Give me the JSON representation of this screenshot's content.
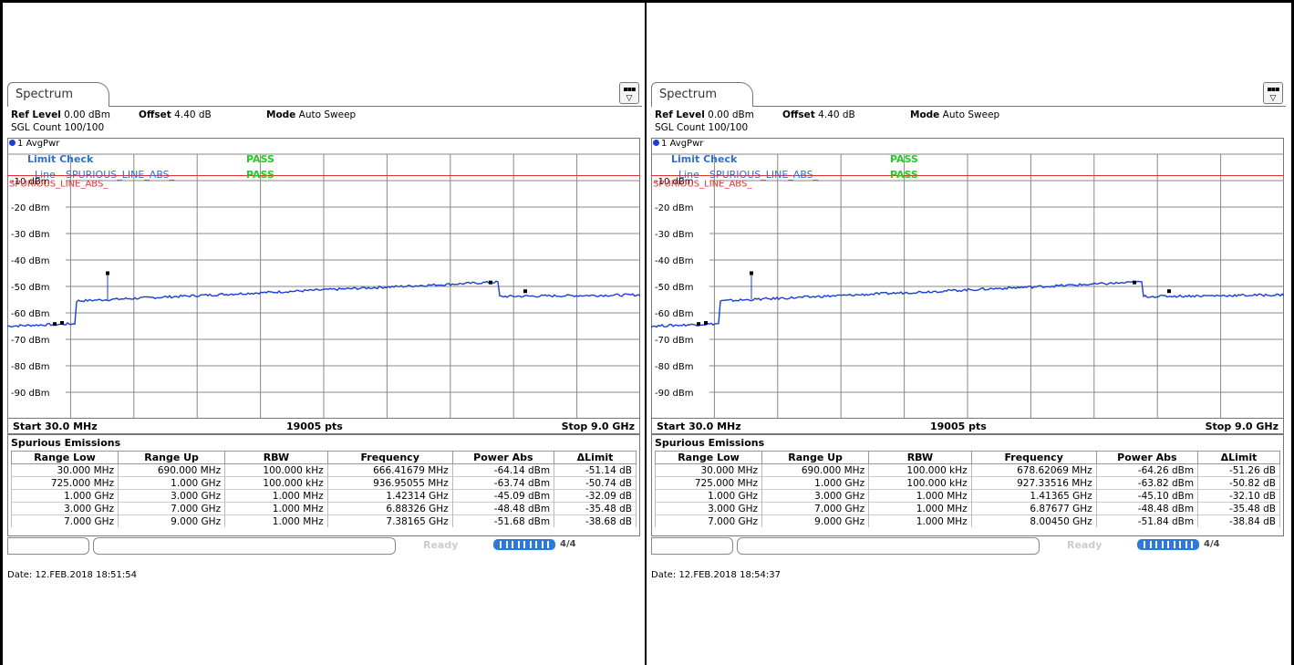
{
  "screens": [
    {
      "tab_label": "Spectrum",
      "ref_level_label": "Ref Level",
      "ref_level_value": "0.00 dBm",
      "offset_label": "Offset",
      "offset_value": "4.40 dB",
      "mode_label": "Mode",
      "mode_value": "Auto Sweep",
      "sgl_count": "SGL Count 100/100",
      "trace_label": "1 AvgPwr",
      "limit_check_label": "Limit Check",
      "limit_check_result": "PASS",
      "line_label": "Line",
      "line_name": "SPURIOUS_LINE_ABS_",
      "line_result": "PASS",
      "limit_line_tag": "SPURIOUS_LINE_ABS_",
      "y_ticks": [
        "-10 dBm",
        "-20 dBm",
        "-30 dBm",
        "-40 dBm",
        "-50 dBm",
        "-60 dBm",
        "-70 dBm",
        "-80 dBm",
        "-90 dBm"
      ],
      "start": "Start 30.0 MHz",
      "points": "19005 pts",
      "stop": "Stop 9.0 GHz",
      "table_title": "Spurious Emissions",
      "columns": [
        "Range Low",
        "Range Up",
        "RBW",
        "Frequency",
        "Power Abs",
        "ΔLimit"
      ],
      "rows": [
        [
          "30.000 MHz",
          "690.000 MHz",
          "100.000 kHz",
          "666.41679 MHz",
          "-64.14 dBm",
          "-51.14 dB"
        ],
        [
          "725.000 MHz",
          "1.000 GHz",
          "100.000 kHz",
          "936.95055 MHz",
          "-63.74 dBm",
          "-50.74 dB"
        ],
        [
          "1.000 GHz",
          "3.000 GHz",
          "1.000 MHz",
          "1.42314 GHz",
          "-45.09 dBm",
          "-32.09 dB"
        ],
        [
          "3.000 GHz",
          "7.000 GHz",
          "1.000 MHz",
          "6.88326 GHz",
          "-48.48 dBm",
          "-35.48 dB"
        ],
        [
          "7.000 GHz",
          "9.000 GHz",
          "1.000 MHz",
          "7.38165 GHz",
          "-51.68 dBm",
          "-38.68 dB"
        ]
      ],
      "status_ready": "Ready",
      "status_num": "4/4",
      "date": "Date: 12.FEB.2018  18:51:54"
    },
    {
      "tab_label": "Spectrum",
      "ref_level_label": "Ref Level",
      "ref_level_value": "0.00 dBm",
      "offset_label": "Offset",
      "offset_value": "4.40 dB",
      "mode_label": "Mode",
      "mode_value": "Auto Sweep",
      "sgl_count": "SGL Count 100/100",
      "trace_label": "1 AvgPwr",
      "limit_check_label": "Limit Check",
      "limit_check_result": "PASS",
      "line_label": "Line",
      "line_name": "SPURIOUS_LINE_ABS_",
      "line_result": "PASS",
      "limit_line_tag": "SPURIOUS_LINE_ABS_",
      "y_ticks": [
        "-10 dBm",
        "-20 dBm",
        "-30 dBm",
        "-40 dBm",
        "-50 dBm",
        "-60 dBm",
        "-70 dBm",
        "-80 dBm",
        "-90 dBm"
      ],
      "start": "Start 30.0 MHz",
      "points": "19005 pts",
      "stop": "Stop 9.0 GHz",
      "table_title": "Spurious Emissions",
      "columns": [
        "Range Low",
        "Range Up",
        "RBW",
        "Frequency",
        "Power Abs",
        "ΔLimit"
      ],
      "rows": [
        [
          "30.000 MHz",
          "690.000 MHz",
          "100.000 kHz",
          "678.62069 MHz",
          "-64.26 dBm",
          "-51.26 dB"
        ],
        [
          "725.000 MHz",
          "1.000 GHz",
          "100.000 kHz",
          "927.33516 MHz",
          "-63.82 dBm",
          "-50.82 dB"
        ],
        [
          "1.000 GHz",
          "3.000 GHz",
          "1.000 MHz",
          "1.41365 GHz",
          "-45.10 dBm",
          "-32.10 dB"
        ],
        [
          "3.000 GHz",
          "7.000 GHz",
          "1.000 MHz",
          "6.87677 GHz",
          "-48.48 dBm",
          "-35.48 dB"
        ],
        [
          "7.000 GHz",
          "9.000 GHz",
          "1.000 MHz",
          "8.00450 GHz",
          "-51.84 dBm",
          "-38.84 dB"
        ]
      ],
      "status_ready": "Ready",
      "status_num": "4/4",
      "date": "Date: 12.FEB.2018  18:54:37"
    }
  ],
  "colors": {
    "trace": "#1a3fd6",
    "limit_line": "#e03030",
    "pass": "#22cc22",
    "legend_text": "#2a6fd6",
    "grid": "#777777"
  }
}
